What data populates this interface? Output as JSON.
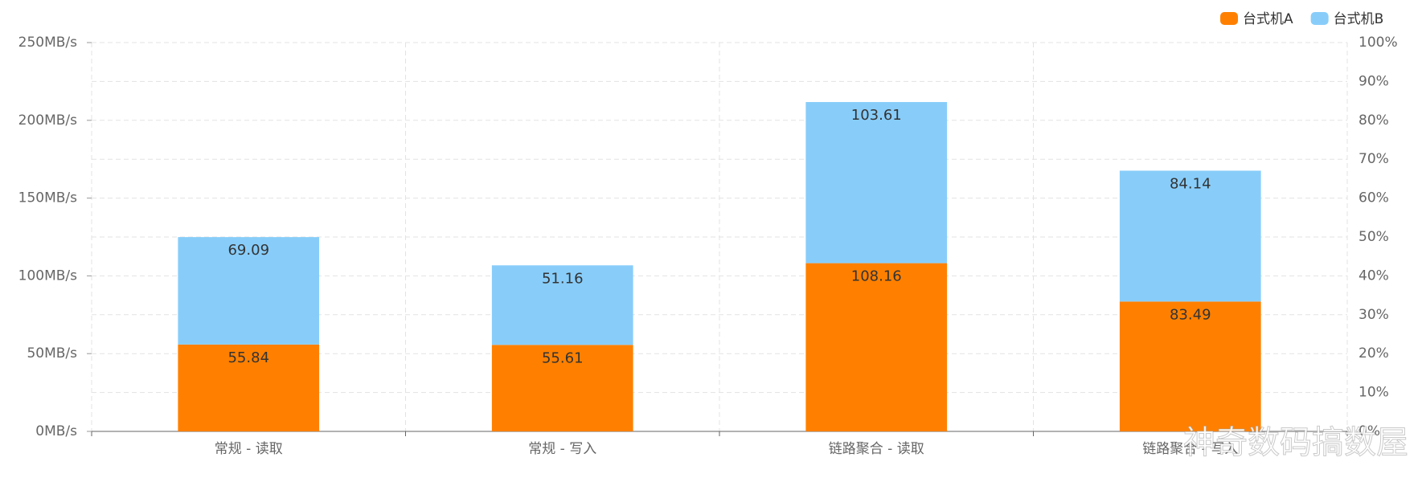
{
  "chart_data": {
    "type": "stacked_bar",
    "categories": [
      "常规 - 读取",
      "常规 - 写入",
      "链路聚合 - 读取",
      "链路聚合 - 写入"
    ],
    "series": [
      {
        "name": "台式机A",
        "color": "#ff8000",
        "values": [
          55.84,
          55.61,
          108.16,
          83.49
        ]
      },
      {
        "name": "台式机B",
        "color": "#88cdfa",
        "values": [
          69.09,
          51.16,
          103.61,
          84.14
        ]
      }
    ],
    "ylim": [
      0,
      250
    ],
    "yticks": [
      {
        "value": 0,
        "label": "0MB/s"
      },
      {
        "value": 50,
        "label": "50MB/s"
      },
      {
        "value": 100,
        "label": "100MB/s"
      },
      {
        "value": 150,
        "label": "150MB/s"
      },
      {
        "value": 200,
        "label": "200MB/s"
      },
      {
        "value": 250,
        "label": "250MB/s"
      }
    ],
    "y2lim": [
      0,
      100
    ],
    "y2ticks": [
      {
        "value": 0,
        "label": "0%"
      },
      {
        "value": 10,
        "label": "10%"
      },
      {
        "value": 20,
        "label": "20%"
      },
      {
        "value": 30,
        "label": "30%"
      },
      {
        "value": 40,
        "label": "40%"
      },
      {
        "value": 50,
        "label": "50%"
      },
      {
        "value": 60,
        "label": "60%"
      },
      {
        "value": 70,
        "label": "70%"
      },
      {
        "value": 80,
        "label": "80%"
      },
      {
        "value": 90,
        "label": "90%"
      },
      {
        "value": 100,
        "label": "100%"
      }
    ],
    "grid": true,
    "legend": "top-right",
    "watermark": "神奇数码搞数屋"
  }
}
